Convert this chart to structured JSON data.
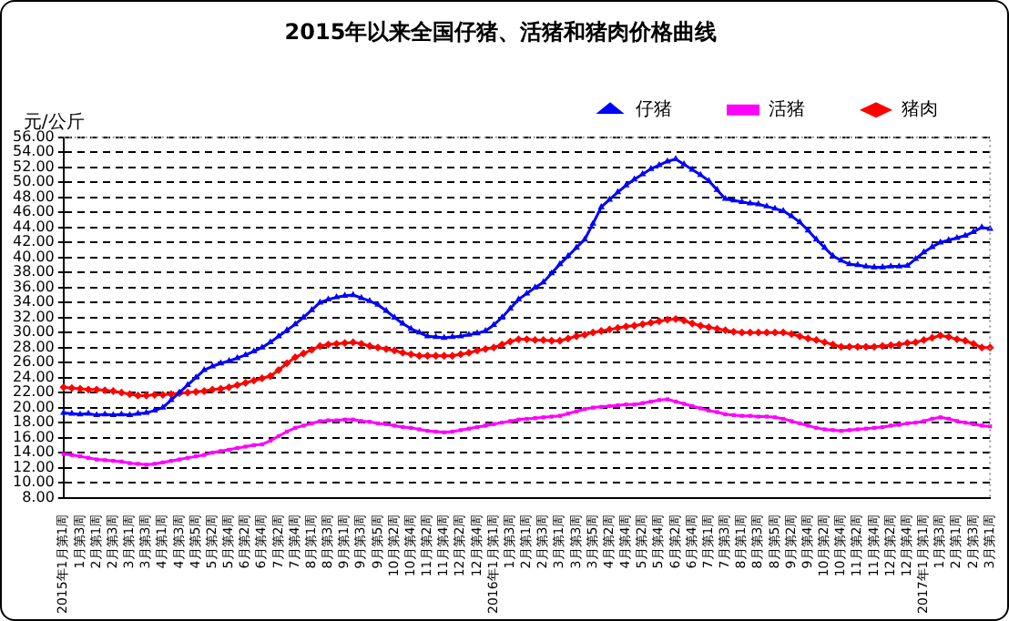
{
  "chart_data": {
    "type": "line",
    "title": "2015年以来全国仔猪、活猪和猪肉价格曲线",
    "ylabel": "元/公斤",
    "categories": [
      "2015年1月第1周",
      null,
      "1月第3周",
      null,
      "2月第1周",
      null,
      "2月第3周",
      null,
      "3月第1周",
      null,
      "3月第3周",
      null,
      "4月第1周",
      null,
      "4月第3周",
      null,
      "4月第5周",
      null,
      "5月第2周",
      null,
      "5月第4周",
      null,
      "6月第2周",
      null,
      "6月第4周",
      null,
      "7月第2周",
      null,
      "7月第4周",
      null,
      "8月第1周",
      null,
      "8月第3周",
      null,
      "9月第1周",
      null,
      "9月第3周",
      null,
      "9月第5周",
      null,
      "10月第2周",
      null,
      "10月第4周",
      null,
      "11月第2周",
      null,
      "11月第4周",
      null,
      "12月第2周",
      null,
      "12月第4周",
      null,
      "2016年1月第1周",
      null,
      "1月第3周",
      null,
      "2月第1周",
      null,
      "2月第3周",
      null,
      "3月第1周",
      null,
      "3月第3周",
      null,
      "3月第5周",
      null,
      "4月第2周",
      null,
      "4月第4周",
      null,
      "5月第2周",
      null,
      "5月第4周",
      null,
      "6月第2周",
      null,
      "6月第4周",
      null,
      "7月第1周",
      null,
      "7月第3周",
      null,
      "8月第1周",
      null,
      "8月第3周",
      null,
      "8月第5周",
      null,
      "9月第2周",
      null,
      "9月第4周",
      null,
      "10月第2周",
      null,
      "10月第4周",
      null,
      "11月第2周",
      null,
      "11月第4周",
      null,
      "12月第2周",
      null,
      "12月第4周",
      null,
      "2017年1月第1周",
      null,
      "1月第3周",
      null,
      "2月第1周",
      null,
      "2月第3周",
      null,
      "3月第1周"
    ],
    "series": [
      {
        "name": "仔猪",
        "color": "#0000ff",
        "marker": "triangle",
        "values": [
          19.3,
          19.2,
          19.1,
          19.2,
          19.0,
          19.1,
          19.0,
          19.1,
          19.0,
          19.2,
          19.3,
          19.6,
          20.0,
          21.0,
          22.0,
          23.0,
          24.0,
          25.0,
          25.5,
          25.9,
          26.2,
          26.6,
          27.0,
          27.5,
          28.0,
          28.7,
          29.5,
          30.3,
          31.1,
          32.0,
          33.0,
          34.0,
          34.4,
          34.7,
          34.9,
          35.0,
          34.6,
          34.2,
          33.7,
          32.9,
          32.0,
          31.2,
          30.5,
          30.0,
          29.5,
          29.4,
          29.3,
          29.4,
          29.5,
          29.7,
          29.9,
          30.2,
          31.0,
          32.0,
          33.2,
          34.4,
          35.2,
          36.0,
          36.7,
          37.9,
          39.1,
          40.2,
          41.3,
          42.4,
          44.5,
          46.7,
          47.7,
          48.7,
          49.6,
          50.4,
          51.1,
          51.8,
          52.3,
          52.8,
          53.1,
          52.4,
          51.7,
          51.0,
          50.2,
          49.0,
          47.8,
          47.6,
          47.4,
          47.2,
          47.1,
          46.8,
          46.5,
          46.2,
          45.5,
          44.7,
          43.6,
          42.4,
          41.3,
          40.2,
          39.6,
          39.1,
          39.0,
          38.8,
          38.7,
          38.7,
          38.8,
          38.8,
          38.9,
          39.8,
          40.7,
          41.4,
          42.0,
          42.3,
          42.6,
          42.9,
          43.4,
          44.0,
          43.8
        ]
      },
      {
        "name": "活猪",
        "color": "#ff00ff",
        "marker": "square",
        "values": [
          13.8,
          13.7,
          13.5,
          13.3,
          13.1,
          13.0,
          12.9,
          12.8,
          12.6,
          12.5,
          12.4,
          12.5,
          12.7,
          12.9,
          13.1,
          13.3,
          13.5,
          13.7,
          14.0,
          14.2,
          14.4,
          14.6,
          14.8,
          15.0,
          15.1,
          15.6,
          16.2,
          16.8,
          17.3,
          17.6,
          17.9,
          18.2,
          18.3,
          18.3,
          18.4,
          18.4,
          18.2,
          18.1,
          17.9,
          17.8,
          17.6,
          17.4,
          17.3,
          17.1,
          16.9,
          16.8,
          16.7,
          16.8,
          17.0,
          17.2,
          17.4,
          17.6,
          17.8,
          18.0,
          18.2,
          18.4,
          18.5,
          18.6,
          18.7,
          18.8,
          18.9,
          19.2,
          19.5,
          19.8,
          20.0,
          20.1,
          20.2,
          20.3,
          20.4,
          20.4,
          20.6,
          20.8,
          21.0,
          21.1,
          20.8,
          20.5,
          20.2,
          19.9,
          19.6,
          19.4,
          19.1,
          19.0,
          18.9,
          18.9,
          18.8,
          18.8,
          18.7,
          18.5,
          18.2,
          17.9,
          17.6,
          17.3,
          17.1,
          17.0,
          16.9,
          17.0,
          17.1,
          17.2,
          17.3,
          17.4,
          17.6,
          17.7,
          17.9,
          18.0,
          18.2,
          18.5,
          18.7,
          18.5,
          18.2,
          18.0,
          17.8,
          17.6,
          17.5
        ]
      },
      {
        "name": "猪肉",
        "color": "#ff0000",
        "marker": "diamond",
        "values": [
          22.7,
          22.6,
          22.5,
          22.4,
          22.4,
          22.3,
          22.2,
          22.0,
          21.8,
          21.6,
          21.6,
          21.7,
          21.7,
          21.8,
          21.9,
          22.0,
          22.1,
          22.2,
          22.4,
          22.5,
          22.7,
          23.0,
          23.3,
          23.6,
          23.9,
          24.2,
          25.0,
          25.9,
          26.7,
          27.2,
          27.7,
          28.2,
          28.4,
          28.5,
          28.6,
          28.7,
          28.5,
          28.2,
          28.0,
          27.8,
          27.6,
          27.3,
          27.1,
          26.9,
          26.9,
          26.9,
          26.9,
          26.9,
          27.1,
          27.3,
          27.6,
          27.8,
          28.0,
          28.4,
          28.8,
          29.1,
          29.1,
          29.0,
          29.0,
          28.9,
          28.9,
          29.2,
          29.5,
          29.7,
          30.0,
          30.2,
          30.4,
          30.6,
          30.8,
          30.9,
          31.1,
          31.3,
          31.5,
          31.7,
          31.8,
          31.6,
          31.2,
          30.9,
          30.7,
          30.5,
          30.3,
          30.1,
          30.0,
          30.0,
          30.0,
          30.0,
          30.0,
          30.0,
          29.8,
          29.5,
          29.2,
          29.0,
          28.7,
          28.4,
          28.1,
          28.1,
          28.1,
          28.1,
          28.1,
          28.2,
          28.3,
          28.4,
          28.6,
          28.7,
          29.0,
          29.3,
          29.6,
          29.4,
          29.1,
          28.9,
          28.5,
          28.0,
          28.0
        ]
      }
    ],
    "ylim": [
      8,
      56
    ],
    "yticks": [
      {
        "value": 8,
        "label": "8.00"
      },
      {
        "value": 10,
        "label": "10.00"
      },
      {
        "value": 12,
        "label": "12.00"
      },
      {
        "value": 14,
        "label": "14.00"
      },
      {
        "value": 16,
        "label": "16.00"
      },
      {
        "value": 18,
        "label": "18.00"
      },
      {
        "value": 20,
        "label": "20.00"
      },
      {
        "value": 22,
        "label": "22.00"
      },
      {
        "value": 24,
        "label": "24.00"
      },
      {
        "value": 26,
        "label": "26.00"
      },
      {
        "value": 28,
        "label": "28.00"
      },
      {
        "value": 30,
        "label": "30.00"
      },
      {
        "value": 32,
        "label": "32.00"
      },
      {
        "value": 34,
        "label": "34.00"
      },
      {
        "value": 36,
        "label": "36.00"
      },
      {
        "value": 38,
        "label": "38.00"
      },
      {
        "value": 40,
        "label": "40.00"
      },
      {
        "value": 42,
        "label": "42.00"
      },
      {
        "value": 44,
        "label": "44.00"
      },
      {
        "value": 46,
        "label": "46.00"
      },
      {
        "value": 48,
        "label": "48.00"
      },
      {
        "value": 50,
        "label": "50.00"
      },
      {
        "value": 52,
        "label": "52.00"
      },
      {
        "value": 54,
        "label": "54.00"
      },
      {
        "value": 56,
        "label": "56.00"
      }
    ],
    "grid": "y",
    "legend": "top right"
  }
}
